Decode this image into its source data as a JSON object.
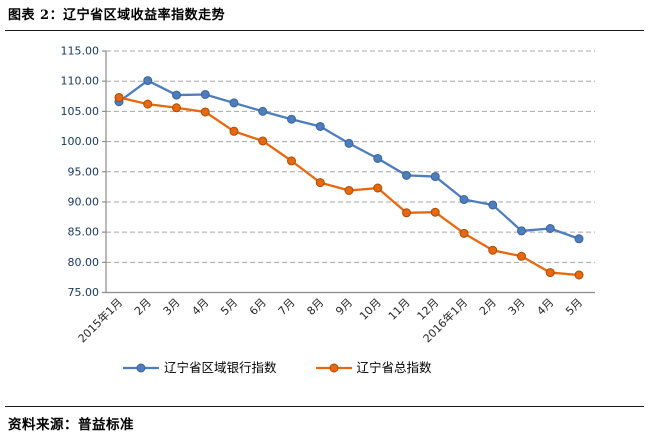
{
  "page": {
    "title": "图表 2：辽宁省区域收益率指数走势",
    "source": "资料来源：普益标准"
  },
  "chart_data": {
    "type": "line",
    "title": "图表 2：辽宁省区域收益率指数走势",
    "xlabel": "",
    "ylabel": "",
    "categories": [
      "2015年1月",
      "2月",
      "3月",
      "4月",
      "5月",
      "6月",
      "7月",
      "8月",
      "9月",
      "10月",
      "11月",
      "12月",
      "2016年1月",
      "2月",
      "3月",
      "4月",
      "5月"
    ],
    "series": [
      {
        "name": "辽宁省区域银行指数",
        "color": "#4E7DBE",
        "marker_border": "#3B6596",
        "marker": "circle",
        "values": [
          106.6,
          110.1,
          107.7,
          107.8,
          106.4,
          105.0,
          103.7,
          102.5,
          99.7,
          97.2,
          94.4,
          94.2,
          90.4,
          89.5,
          85.2,
          85.6,
          83.9
        ]
      },
      {
        "name": "辽宁省总指数",
        "color": "#E8680F",
        "marker_border": "#A84D08",
        "marker": "circle",
        "values": [
          107.3,
          106.2,
          105.6,
          104.9,
          101.7,
          100.1,
          96.8,
          93.2,
          91.9,
          92.3,
          88.2,
          88.3,
          84.8,
          82.0,
          81.0,
          78.3,
          77.9
        ]
      }
    ],
    "ylim": [
      75,
      115
    ],
    "ytick_step": 5,
    "ytick_labels": [
      "75.00",
      "80.00",
      "85.00",
      "90.00",
      "95.00",
      "100.00",
      "105.00",
      "110.00",
      "115.00"
    ],
    "grid": "horizontal-dashed",
    "legend_position": "bottom",
    "xtick_rotation": -45,
    "colors": {
      "grid": "#A6A6A6",
      "axis": "#8C8C8C",
      "ytick_label": "#17375E",
      "xtick_label": "#262626"
    }
  }
}
